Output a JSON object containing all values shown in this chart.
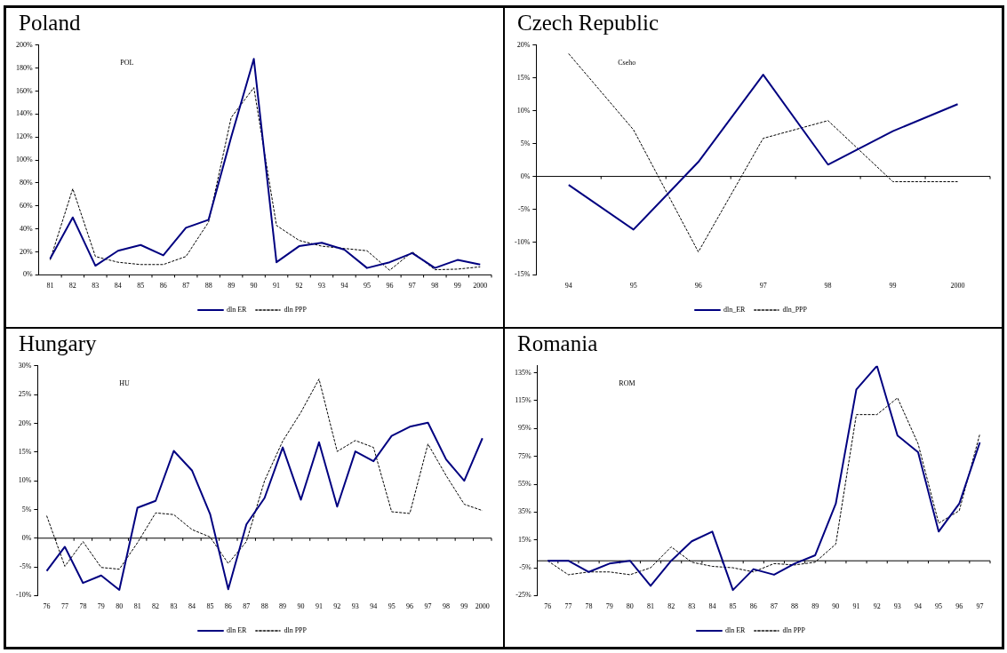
{
  "chart_data": [
    {
      "type": "line",
      "title": "Poland",
      "annotations": [
        "POL"
      ],
      "legend": "bottom",
      "marker": "none",
      "categories": [
        "81",
        "82",
        "83",
        "84",
        "85",
        "86",
        "87",
        "88",
        "89",
        "90",
        "91",
        "92",
        "93",
        "94",
        "95",
        "96",
        "97",
        "98",
        "99",
        "2000"
      ],
      "ylim": [
        0,
        200
      ],
      "yticks": [
        {
          "value": 0,
          "label": "0%"
        },
        {
          "value": 20,
          "label": "20%"
        },
        {
          "value": 40,
          "label": "40%"
        },
        {
          "value": 60,
          "label": "60%"
        },
        {
          "value": 80,
          "label": "80%"
        },
        {
          "value": 100,
          "label": "100%"
        },
        {
          "value": 120,
          "label": "120%"
        },
        {
          "value": 140,
          "label": "140%"
        },
        {
          "value": 160,
          "label": "160%"
        },
        {
          "value": 180,
          "label": "180%"
        },
        {
          "value": 200,
          "label": "200%"
        }
      ],
      "series": [
        {
          "name": "dln ER",
          "color": "#000080",
          "line_style": "solid",
          "values": [
            14,
            50,
            8,
            21,
            26,
            17,
            41,
            48,
            120,
            188,
            11,
            25,
            28,
            22,
            6,
            11,
            19,
            6,
            13,
            9
          ]
        },
        {
          "name": "dln PPP",
          "color": "#000000",
          "line_style": "dashed",
          "values": [
            13,
            75,
            16,
            11,
            9,
            9,
            16,
            46,
            137,
            163,
            43,
            30,
            25,
            23,
            21,
            4,
            20,
            4.5,
            5,
            7
          ]
        }
      ]
    },
    {
      "type": "line",
      "title": "Czech Republic",
      "annotations": [
        "Cseho"
      ],
      "legend": "bottom",
      "marker": "none",
      "categories": [
        "94",
        "95",
        "96",
        "97",
        "98",
        "99",
        "2000"
      ],
      "ylim": [
        -15,
        20
      ],
      "yticks": [
        {
          "value": -15,
          "label": "-15%"
        },
        {
          "value": -10,
          "label": "-10%"
        },
        {
          "value": -5,
          "label": "-5%"
        },
        {
          "value": 0,
          "label": "0%"
        },
        {
          "value": 5,
          "label": "5%"
        },
        {
          "value": 10,
          "label": "10%"
        },
        {
          "value": 15,
          "label": "15%"
        },
        {
          "value": 20,
          "label": "20%"
        }
      ],
      "series": [
        {
          "name": "dln_ER",
          "color": "#000080",
          "line_style": "solid",
          "values": [
            -1.3,
            -8.1,
            2.2,
            15.5,
            1.8,
            6.9,
            11.0
          ]
        },
        {
          "name": "dln_PPP",
          "color": "#000000",
          "line_style": "dashed",
          "values": [
            18.7,
            7.1,
            -11.5,
            5.8,
            8.5,
            -0.8,
            -0.8
          ]
        }
      ]
    },
    {
      "type": "line",
      "title": "Hungary",
      "annotations": [
        "HU"
      ],
      "legend": "bottom",
      "marker": "none",
      "categories": [
        "76",
        "77",
        "78",
        "79",
        "80",
        "81",
        "82",
        "83",
        "84",
        "85",
        "86",
        "87",
        "88",
        "89",
        "90",
        "91",
        "92",
        "93",
        "94",
        "95",
        "96",
        "97",
        "98",
        "99",
        "2000"
      ],
      "ylim": [
        -10,
        30
      ],
      "yticks": [
        {
          "value": -10,
          "label": "-10%"
        },
        {
          "value": -5,
          "label": "-5%"
        },
        {
          "value": 0,
          "label": "0%"
        },
        {
          "value": 5,
          "label": "5%"
        },
        {
          "value": 10,
          "label": "10%"
        },
        {
          "value": 15,
          "label": "15%"
        },
        {
          "value": 20,
          "label": "20%"
        },
        {
          "value": 25,
          "label": "25%"
        },
        {
          "value": 30,
          "label": "30%"
        }
      ],
      "series": [
        {
          "name": "dln ER",
          "color": "#000080",
          "line_style": "solid",
          "values": [
            -5.7,
            -1.5,
            -7.8,
            -6.5,
            -9.0,
            5.3,
            6.5,
            15.2,
            11.8,
            4.2,
            -8.9,
            2.4,
            7.0,
            15.8,
            6.7,
            16.7,
            5.5,
            15.1,
            13.4,
            17.8,
            19.4,
            20.1,
            13.7,
            10.0,
            17.4
          ]
        },
        {
          "name": "dln PPP",
          "color": "#000000",
          "line_style": "dashed",
          "values": [
            3.9,
            -4.9,
            -0.6,
            -5.1,
            -5.4,
            -0.8,
            4.4,
            4.1,
            1.5,
            0.2,
            -4.4,
            -0.6,
            10.0,
            16.9,
            21.9,
            27.7,
            15.1,
            17.0,
            15.8,
            4.6,
            4.3,
            16.4,
            10.9,
            5.9,
            4.8
          ]
        }
      ]
    },
    {
      "type": "line",
      "title": "Romania",
      "annotations": [
        "ROM"
      ],
      "legend": "bottom",
      "marker": "none",
      "categories": [
        "76",
        "77",
        "78",
        "79",
        "80",
        "81",
        "82",
        "83",
        "84",
        "85",
        "86",
        "87",
        "88",
        "89",
        "90",
        "91",
        "92",
        "93",
        "94",
        "95",
        "96",
        "97"
      ],
      "ylim": [
        -25,
        140
      ],
      "yticks": [
        {
          "value": -25,
          "label": "-25%"
        },
        {
          "value": -5,
          "label": "-5%"
        },
        {
          "value": 15,
          "label": "15%"
        },
        {
          "value": 35,
          "label": "35%"
        },
        {
          "value": 55,
          "label": "55%"
        },
        {
          "value": 75,
          "label": "75%"
        },
        {
          "value": 95,
          "label": "95%"
        },
        {
          "value": 115,
          "label": "115%"
        },
        {
          "value": 135,
          "label": "135%"
        }
      ],
      "series": [
        {
          "name": "dln ER",
          "color": "#000080",
          "line_style": "solid",
          "values": [
            0,
            0,
            -8,
            -2,
            0,
            -18,
            0,
            14,
            21,
            -21,
            -6,
            -10,
            -2,
            4,
            41,
            123,
            140,
            90,
            78,
            21,
            41,
            85
          ]
        },
        {
          "name": "dln PPP",
          "color": "#000000",
          "line_style": "dashed",
          "values": [
            0,
            -10,
            -8,
            -8,
            -10,
            -5,
            10,
            -1,
            -4,
            -5,
            -8,
            -2,
            -3,
            -1,
            12,
            105,
            105,
            117,
            84,
            27,
            36,
            91
          ]
        }
      ]
    }
  ]
}
